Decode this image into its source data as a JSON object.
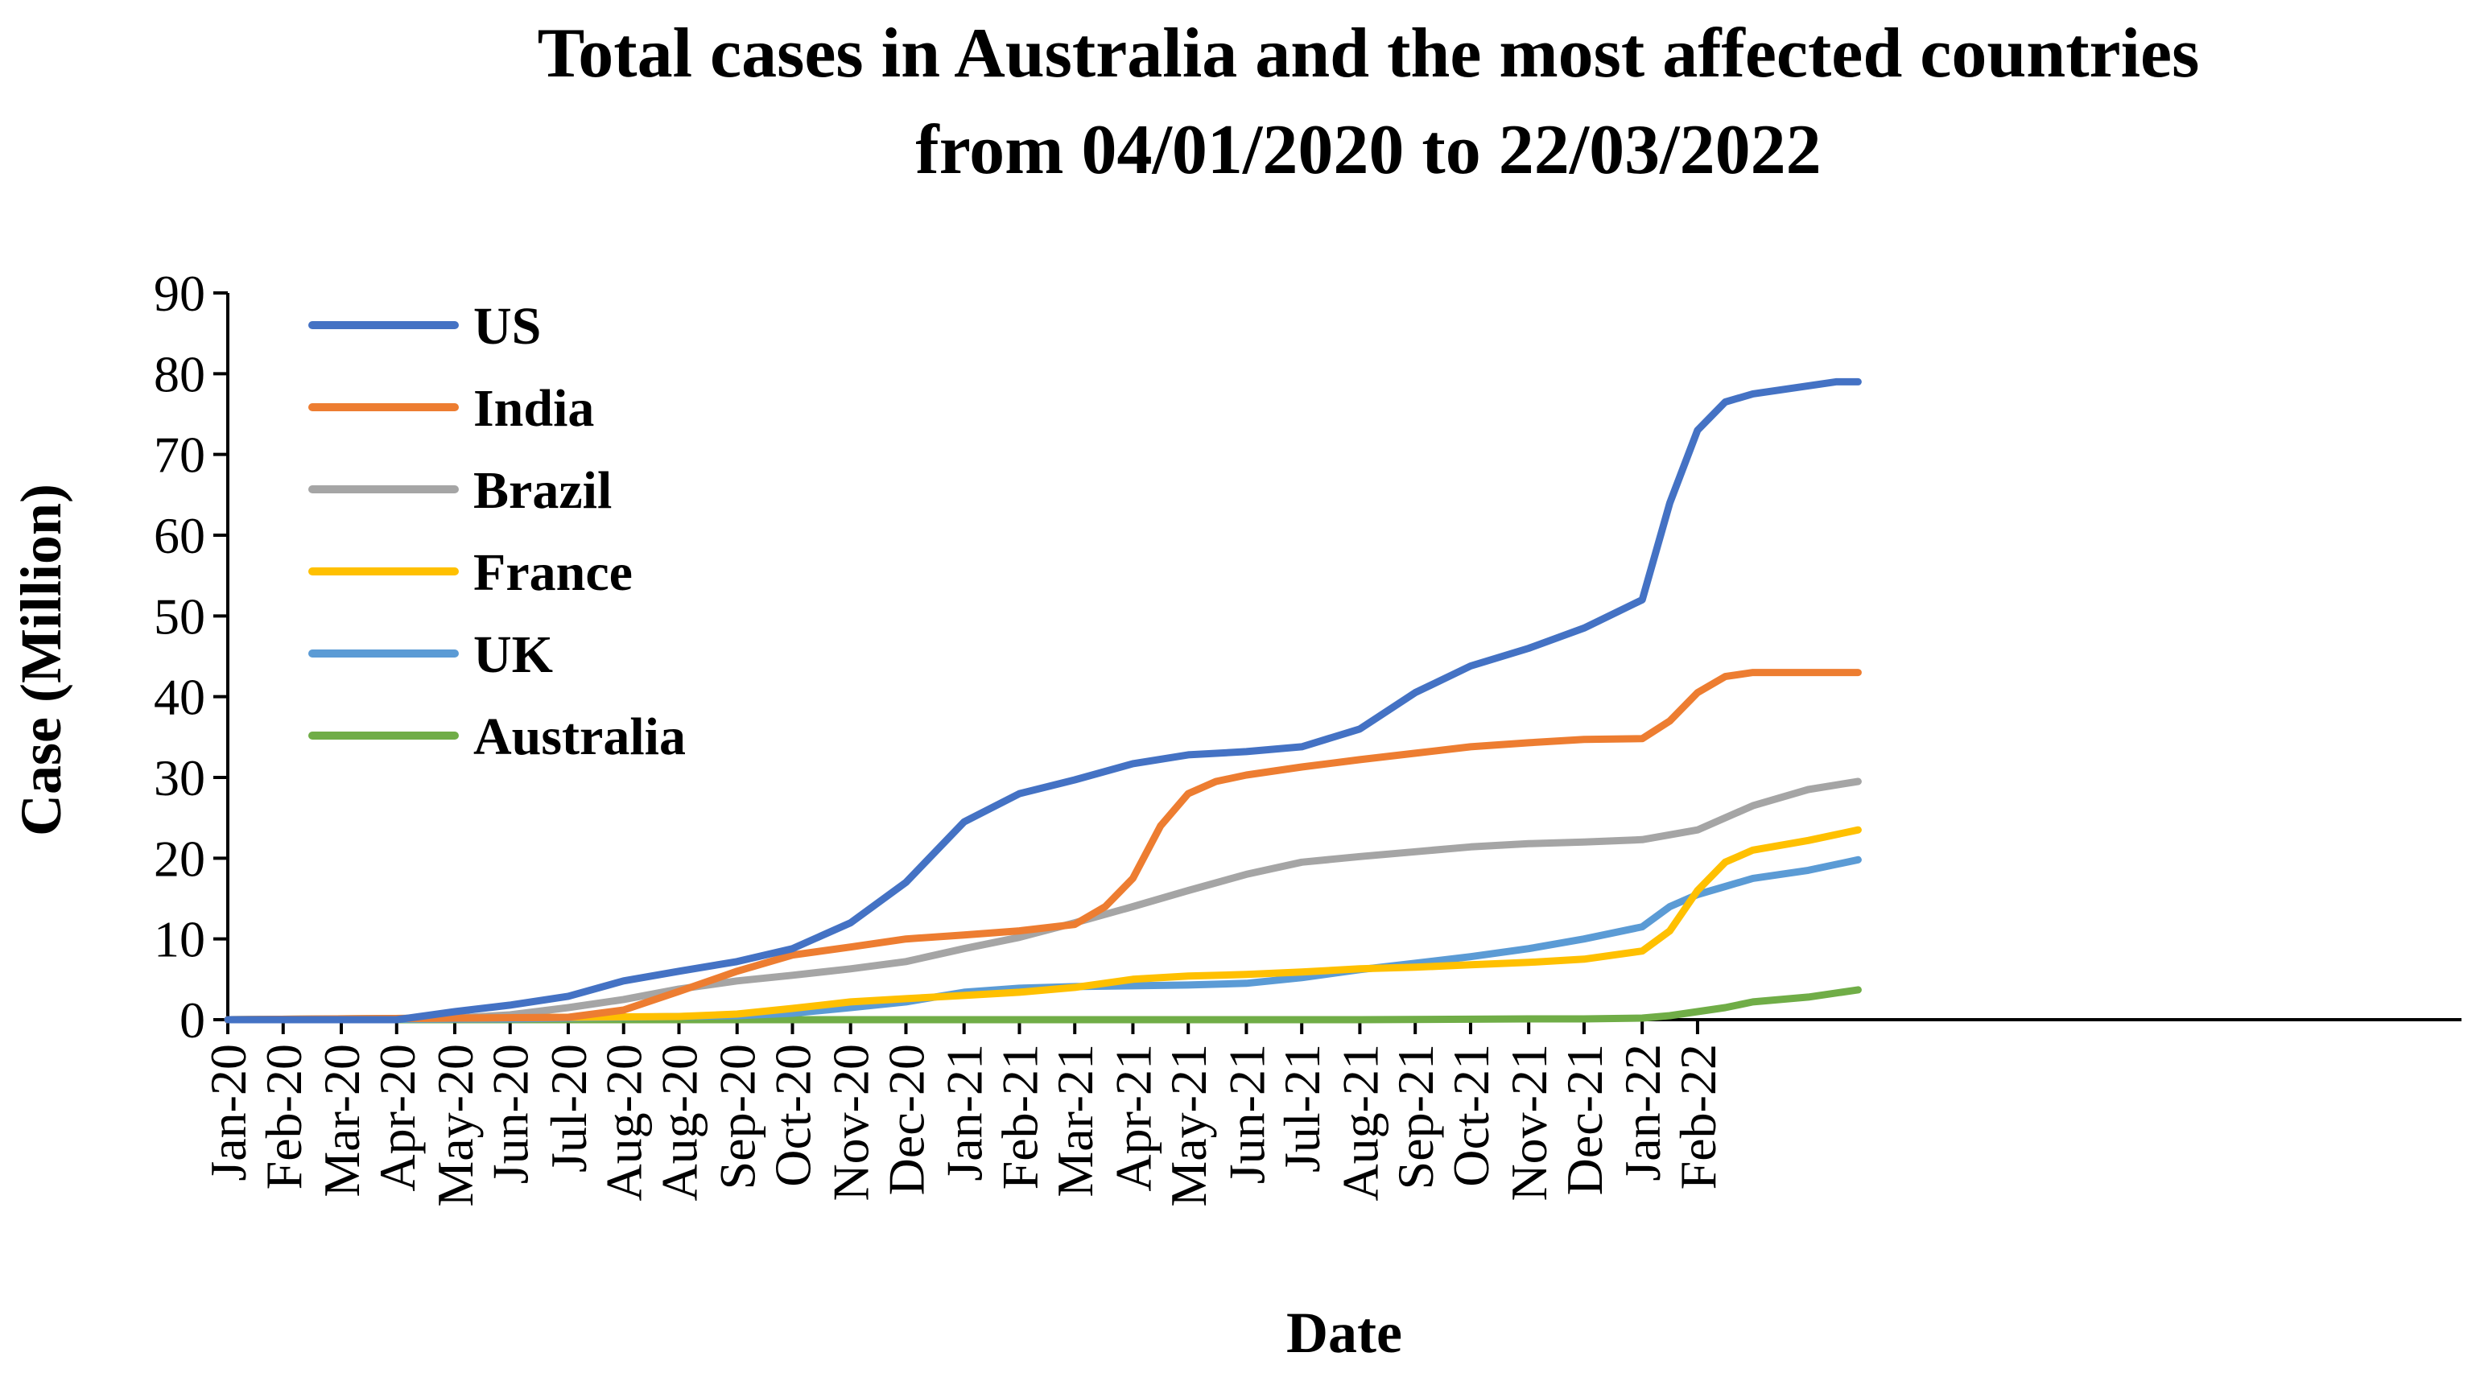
{
  "chart_data": {
    "type": "line",
    "title_lines": [
      "Total cases in Australia and the most affected countries",
      "from 04/01/2020 to 22/03/2022"
    ],
    "xlabel": "Date",
    "ylabel": "Case (Million)",
    "ylim": [
      0,
      90
    ],
    "yticks": [
      0,
      10,
      20,
      30,
      40,
      50,
      60,
      70,
      80,
      90
    ],
    "xlim": [
      0,
      807
    ],
    "x_unit": "days since 04/01/2020",
    "x_ticks": [
      {
        "label": "Jan-20",
        "day": 0
      },
      {
        "label": "Feb-20",
        "day": 20
      },
      {
        "label": "Mar-20",
        "day": 41
      },
      {
        "label": "Apr-20",
        "day": 61
      },
      {
        "label": "May-20",
        "day": 82
      },
      {
        "label": "Jun-20",
        "day": 102
      },
      {
        "label": "Jul-20",
        "day": 123
      },
      {
        "label": "Aug-20",
        "day": 143
      },
      {
        "label": "Aug-20",
        "day": 163
      },
      {
        "label": "Sep-20",
        "day": 184
      },
      {
        "label": "Oct-20",
        "day": 204
      },
      {
        "label": "Nov-20",
        "day": 225
      },
      {
        "label": "Dec-20",
        "day": 245
      },
      {
        "label": "Jan-21",
        "day": 266
      },
      {
        "label": "Feb-21",
        "day": 286
      },
      {
        "label": "Mar-21",
        "day": 306
      },
      {
        "label": "Apr-21",
        "day": 327
      },
      {
        "label": "May-21",
        "day": 347
      },
      {
        "label": "Jun-21",
        "day": 368
      },
      {
        "label": "Jul-21",
        "day": 388
      },
      {
        "label": "Aug-21",
        "day": 409
      },
      {
        "label": "Sep-21",
        "day": 429
      },
      {
        "label": "Oct-21",
        "day": 449
      },
      {
        "label": "Nov-21",
        "day": 470
      },
      {
        "label": "Dec-21",
        "day": 490
      },
      {
        "label": "Jan-22",
        "day": 511
      },
      {
        "label": "Feb-22",
        "day": 531
      }
    ],
    "legend": {
      "position": "top-left"
    },
    "grid": false,
    "series": [
      {
        "name": "US",
        "color": "#4472C4",
        "points": [
          [
            0,
            0
          ],
          [
            61,
            0
          ],
          [
            82,
            1
          ],
          [
            102,
            1.8
          ],
          [
            123,
            2.9
          ],
          [
            143,
            4.8
          ],
          [
            163,
            6
          ],
          [
            184,
            7.2
          ],
          [
            204,
            8.8
          ],
          [
            225,
            12
          ],
          [
            245,
            17
          ],
          [
            266,
            24.5
          ],
          [
            286,
            28
          ],
          [
            306,
            29.7
          ],
          [
            327,
            31.7
          ],
          [
            347,
            32.8
          ],
          [
            368,
            33.2
          ],
          [
            388,
            33.8
          ],
          [
            409,
            36
          ],
          [
            429,
            40.5
          ],
          [
            449,
            43.8
          ],
          [
            470,
            46
          ],
          [
            490,
            48.5
          ],
          [
            511,
            52
          ],
          [
            521,
            64
          ],
          [
            531,
            73
          ],
          [
            541,
            76.5
          ],
          [
            551,
            77.5
          ],
          [
            561,
            78
          ],
          [
            571,
            78.5
          ],
          [
            581,
            79
          ],
          [
            589,
            79
          ]
        ]
      },
      {
        "name": "India",
        "color": "#ED7D31",
        "points": [
          [
            0,
            0
          ],
          [
            123,
            0.3
          ],
          [
            143,
            1.2
          ],
          [
            163,
            3.5
          ],
          [
            184,
            6
          ],
          [
            204,
            8
          ],
          [
            225,
            9
          ],
          [
            245,
            10
          ],
          [
            266,
            10.5
          ],
          [
            286,
            11
          ],
          [
            306,
            11.8
          ],
          [
            317,
            14
          ],
          [
            327,
            17.5
          ],
          [
            337,
            24
          ],
          [
            347,
            28
          ],
          [
            357,
            29.5
          ],
          [
            368,
            30.3
          ],
          [
            388,
            31.3
          ],
          [
            409,
            32.2
          ],
          [
            429,
            33
          ],
          [
            449,
            33.8
          ],
          [
            470,
            34.3
          ],
          [
            490,
            34.7
          ],
          [
            511,
            34.8
          ],
          [
            521,
            37
          ],
          [
            531,
            40.5
          ],
          [
            541,
            42.5
          ],
          [
            551,
            43
          ],
          [
            561,
            43
          ],
          [
            589,
            43
          ]
        ]
      },
      {
        "name": "Brazil",
        "color": "#A5A5A5",
        "points": [
          [
            0,
            0
          ],
          [
            82,
            0.2
          ],
          [
            102,
            0.6
          ],
          [
            123,
            1.5
          ],
          [
            143,
            2.5
          ],
          [
            163,
            3.8
          ],
          [
            184,
            4.8
          ],
          [
            204,
            5.5
          ],
          [
            225,
            6.3
          ],
          [
            245,
            7.2
          ],
          [
            266,
            8.8
          ],
          [
            286,
            10.2
          ],
          [
            306,
            12
          ],
          [
            327,
            14
          ],
          [
            347,
            16
          ],
          [
            368,
            18
          ],
          [
            388,
            19.5
          ],
          [
            409,
            20.2
          ],
          [
            429,
            20.8
          ],
          [
            449,
            21.4
          ],
          [
            470,
            21.8
          ],
          [
            490,
            22
          ],
          [
            511,
            22.3
          ],
          [
            531,
            23.5
          ],
          [
            551,
            26.5
          ],
          [
            571,
            28.5
          ],
          [
            589,
            29.5
          ]
        ]
      },
      {
        "name": "France",
        "color": "#FFC000",
        "points": [
          [
            0,
            0
          ],
          [
            163,
            0.4
          ],
          [
            184,
            0.7
          ],
          [
            204,
            1.4
          ],
          [
            225,
            2.2
          ],
          [
            245,
            2.6
          ],
          [
            266,
            3
          ],
          [
            286,
            3.4
          ],
          [
            306,
            4
          ],
          [
            327,
            5
          ],
          [
            347,
            5.4
          ],
          [
            368,
            5.6
          ],
          [
            388,
            5.9
          ],
          [
            409,
            6.3
          ],
          [
            429,
            6.5
          ],
          [
            449,
            6.8
          ],
          [
            470,
            7.1
          ],
          [
            490,
            7.5
          ],
          [
            511,
            8.5
          ],
          [
            521,
            11
          ],
          [
            531,
            16
          ],
          [
            541,
            19.5
          ],
          [
            551,
            21
          ],
          [
            571,
            22.2
          ],
          [
            589,
            23.5
          ]
        ]
      },
      {
        "name": "UK",
        "color": "#5B9BD5",
        "points": [
          [
            0,
            0
          ],
          [
            102,
            0.1
          ],
          [
            143,
            0.3
          ],
          [
            184,
            0.5
          ],
          [
            204,
            0.8
          ],
          [
            225,
            1.5
          ],
          [
            245,
            2.2
          ],
          [
            266,
            3.4
          ],
          [
            286,
            3.9
          ],
          [
            306,
            4.1
          ],
          [
            327,
            4.2
          ],
          [
            347,
            4.3
          ],
          [
            368,
            4.5
          ],
          [
            388,
            5.2
          ],
          [
            409,
            6.2
          ],
          [
            429,
            7
          ],
          [
            449,
            7.8
          ],
          [
            470,
            8.8
          ],
          [
            490,
            10
          ],
          [
            511,
            11.5
          ],
          [
            521,
            14
          ],
          [
            531,
            15.5
          ],
          [
            541,
            16.5
          ],
          [
            551,
            17.5
          ],
          [
            571,
            18.5
          ],
          [
            589,
            19.8
          ]
        ]
      },
      {
        "name": "Australia",
        "color": "#70AD47",
        "points": [
          [
            0,
            0
          ],
          [
            409,
            0
          ],
          [
            470,
            0.1
          ],
          [
            490,
            0.1
          ],
          [
            511,
            0.2
          ],
          [
            521,
            0.5
          ],
          [
            531,
            1
          ],
          [
            541,
            1.5
          ],
          [
            551,
            2.2
          ],
          [
            571,
            2.8
          ],
          [
            589,
            3.7
          ]
        ]
      }
    ]
  }
}
